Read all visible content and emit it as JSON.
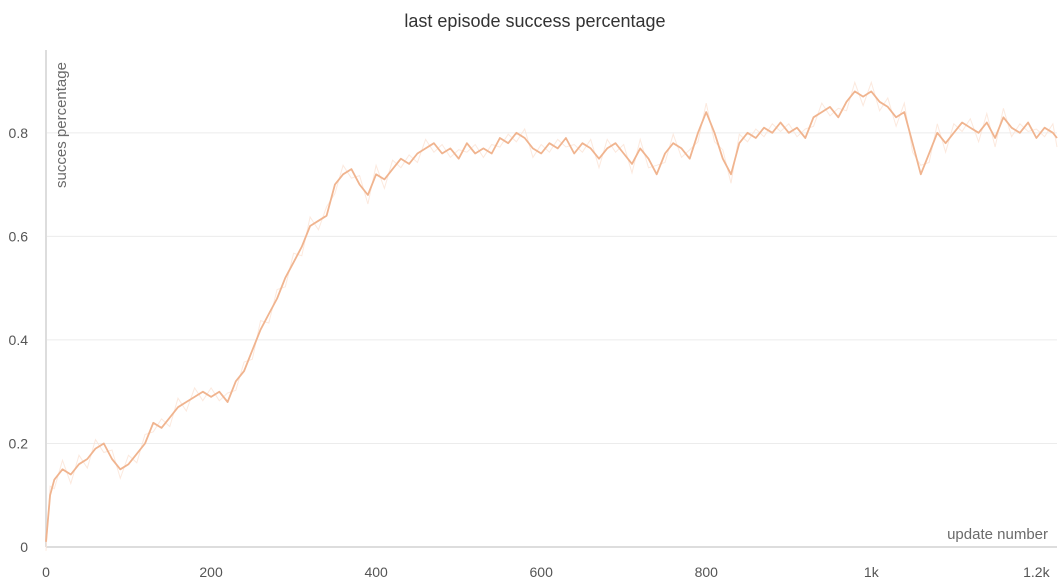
{
  "chart_data": {
    "type": "line",
    "title": "last episode success percentage",
    "xlabel": "update number",
    "ylabel": "succes percentage",
    "xlim": [
      0,
      1225
    ],
    "ylim": [
      0,
      0.96
    ],
    "x_ticks": [
      0,
      200,
      400,
      600,
      800,
      1000,
      1200
    ],
    "x_tick_labels": [
      "0",
      "200",
      "400",
      "600",
      "800",
      "1k",
      "1.2k"
    ],
    "y_ticks": [
      0,
      0.2,
      0.4,
      0.6,
      0.8
    ],
    "y_tick_labels": [
      "0",
      "0.2",
      "0.4",
      "0.6",
      "0.8"
    ],
    "grid": true,
    "legend": "none",
    "colors": {
      "line": "#f0b48f",
      "raw": "#fbe3d6",
      "grid": "#ececec",
      "axis": "#dddddd",
      "text": "#555555"
    },
    "series": [
      {
        "x": [
          0,
          5,
          10,
          20,
          30,
          40,
          50,
          60,
          70,
          80,
          90,
          100,
          110,
          120,
          130,
          140,
          150,
          160,
          170,
          180,
          190,
          200,
          210,
          220,
          230,
          240,
          250,
          260,
          270,
          280,
          290,
          300,
          310,
          320,
          330,
          340,
          350,
          360,
          370,
          380,
          390,
          400,
          410,
          420,
          430,
          440,
          450,
          460,
          470,
          480,
          490,
          500,
          510,
          520,
          530,
          540,
          550,
          560,
          570,
          580,
          590,
          600,
          610,
          620,
          630,
          640,
          650,
          660,
          670,
          680,
          690,
          700,
          710,
          720,
          730,
          740,
          750,
          760,
          770,
          780,
          790,
          800,
          810,
          820,
          830,
          840,
          850,
          860,
          870,
          880,
          890,
          900,
          910,
          920,
          930,
          940,
          950,
          960,
          970,
          980,
          990,
          1000,
          1010,
          1020,
          1030,
          1040,
          1050,
          1060,
          1070,
          1080,
          1090,
          1100,
          1110,
          1120,
          1130,
          1140,
          1150,
          1160,
          1170,
          1180,
          1190,
          1200,
          1210,
          1220,
          1225
        ],
        "values": [
          0.01,
          0.1,
          0.13,
          0.15,
          0.14,
          0.16,
          0.17,
          0.19,
          0.2,
          0.17,
          0.15,
          0.16,
          0.18,
          0.2,
          0.24,
          0.23,
          0.25,
          0.27,
          0.28,
          0.29,
          0.3,
          0.29,
          0.3,
          0.28,
          0.32,
          0.34,
          0.38,
          0.42,
          0.45,
          0.48,
          0.52,
          0.55,
          0.58,
          0.62,
          0.63,
          0.64,
          0.7,
          0.72,
          0.73,
          0.7,
          0.68,
          0.72,
          0.71,
          0.73,
          0.75,
          0.74,
          0.76,
          0.77,
          0.78,
          0.76,
          0.77,
          0.75,
          0.78,
          0.76,
          0.77,
          0.76,
          0.79,
          0.78,
          0.8,
          0.79,
          0.77,
          0.76,
          0.78,
          0.77,
          0.79,
          0.76,
          0.78,
          0.77,
          0.75,
          0.77,
          0.78,
          0.76,
          0.74,
          0.77,
          0.75,
          0.72,
          0.76,
          0.78,
          0.77,
          0.75,
          0.8,
          0.84,
          0.8,
          0.75,
          0.72,
          0.78,
          0.8,
          0.79,
          0.81,
          0.8,
          0.82,
          0.8,
          0.81,
          0.79,
          0.83,
          0.84,
          0.85,
          0.83,
          0.86,
          0.88,
          0.87,
          0.88,
          0.86,
          0.85,
          0.83,
          0.84,
          0.78,
          0.72,
          0.76,
          0.8,
          0.78,
          0.8,
          0.82,
          0.81,
          0.8,
          0.82,
          0.79,
          0.83,
          0.81,
          0.8,
          0.82,
          0.79,
          0.81,
          0.8,
          0.79
        ]
      }
    ]
  }
}
